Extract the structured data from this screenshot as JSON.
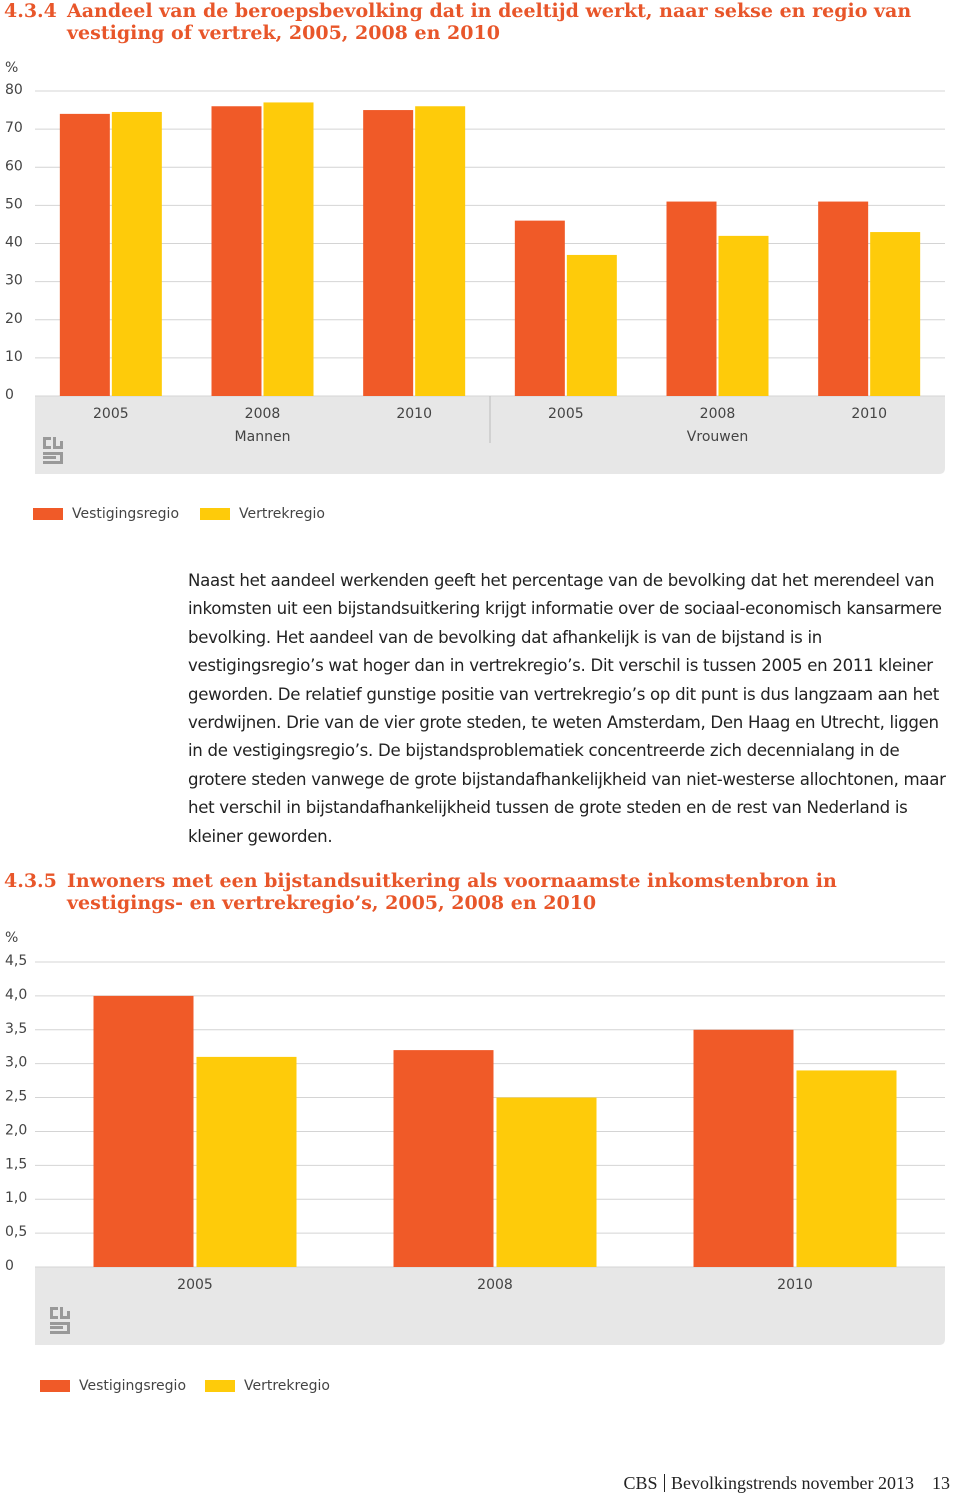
{
  "chart_data": [
    {
      "type": "bar",
      "number": "4.3.4",
      "title": "Aandeel van de beroepsbevolking dat in deeltijd werkt, naar sekse en regio van vestiging of vertrek, 2005, 2008 en 2010",
      "y_label": "%",
      "categories": [
        "2005",
        "2008",
        "2010",
        "2005",
        "2008",
        "2010"
      ],
      "groups": [
        "Mannen",
        "Vrouwen"
      ],
      "series": [
        {
          "name": "Vestigingsregio",
          "color": "#f05a28",
          "values": [
            74,
            76,
            75,
            46,
            51,
            51
          ]
        },
        {
          "name": "Vertrekregio",
          "color": "#fecb0a",
          "values": [
            74.5,
            77,
            76,
            37,
            42,
            43
          ]
        }
      ],
      "ylim": [
        0,
        80
      ],
      "yticks": [
        0,
        10,
        20,
        30,
        40,
        50,
        60,
        70,
        80
      ],
      "grid": true
    },
    {
      "type": "bar",
      "number": "4.3.5",
      "title": "Inwoners met een bijstandsuitkering als voornaamste inkomstenbron in vestigings- en vertrekregio’s, 2005, 2008 en 2010",
      "y_label": "%",
      "categories": [
        "2005",
        "2008",
        "2010"
      ],
      "series": [
        {
          "name": "Vestigingsregio",
          "color": "#f05a28",
          "values": [
            4.0,
            3.2,
            3.5
          ]
        },
        {
          "name": "Vertrekregio",
          "color": "#fecb0a",
          "values": [
            3.1,
            2.5,
            2.9
          ]
        }
      ],
      "ylim": [
        0,
        4.5
      ],
      "yticks": [
        0,
        {
          "value": 0.5,
          "label": "0,5"
        },
        {
          "value": 1,
          "label": "1,0"
        },
        {
          "value": 1.5,
          "label": "1,5"
        },
        {
          "value": 2,
          "label": "2,0"
        },
        {
          "value": 2.5,
          "label": "2,5"
        },
        {
          "value": 3,
          "label": "3,0"
        },
        {
          "value": 3.5,
          "label": "3,5"
        },
        {
          "value": 4,
          "label": "4,0"
        },
        {
          "value": 4.5,
          "label": "4,5"
        }
      ],
      "grid": true
    }
  ],
  "paragraph": "Naast het aandeel werkenden geeft het percentage van de bevolking dat het merendeel van inkomsten uit een bijstandsuitkering krijgt informatie over de sociaal-economisch kansarmere bevolking. Het aandeel van de bevolking dat afhankelijk is van de bijstand is in vestigingsregio’s wat hoger dan in vertrekregio’s. Dit verschil is tussen 2005 en 2011 kleiner geworden. De relatief gunstige positie van vertrekregio’s op dit punt is dus langzaam aan het verdwijnen. Drie van de vier grote steden, te weten Amsterdam, Den Haag en Utrecht, liggen in de vestigingsregio’s. De bijstandsproblematiek concentreerde zich decennialang in de grotere steden vanwege de grote bijstandafhankelijkheid van niet-westerse allochtonen, maar het verschil in bijstandafhankelijkheid tussen de grote steden en de rest van Nederland is kleiner geworden.",
  "footer": {
    "publisher": "CBS",
    "publication": "Bevolkingstrends november 2013",
    "page": "13"
  }
}
